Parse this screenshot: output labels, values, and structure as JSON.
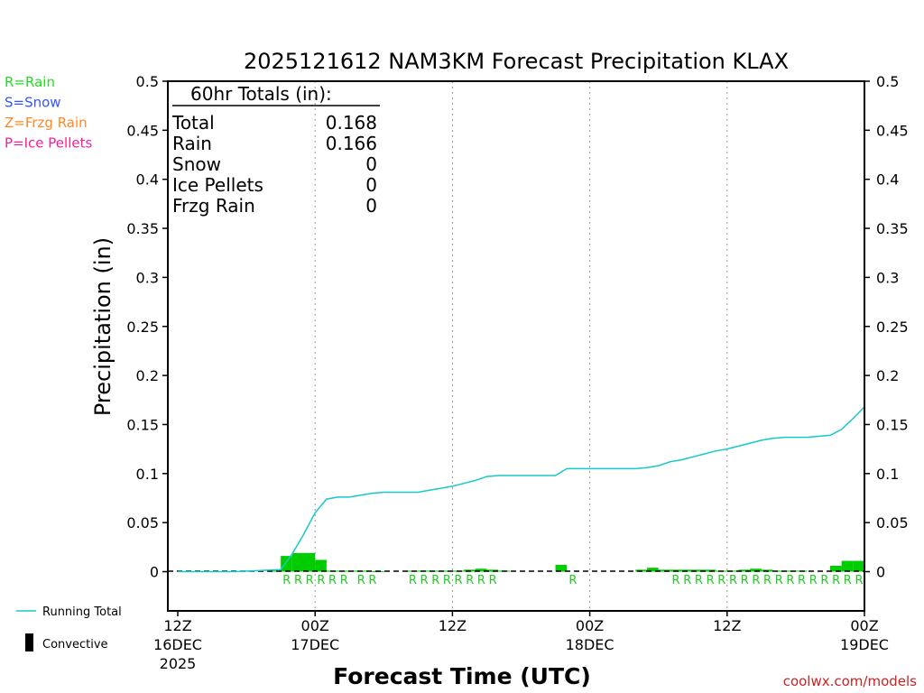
{
  "title": "2025121612 NAM3KM Forecast Precipitation KLAX",
  "credit": "coolwx.com/models",
  "legend_ptype": [
    {
      "label": "R=Rain",
      "color": "#22dd22"
    },
    {
      "label": "S=Snow",
      "color": "#3355ff"
    },
    {
      "label": "Z=Frzg Rain",
      "color": "#ff8822"
    },
    {
      "label": "P=Ice Pellets",
      "color": "#ee2299"
    }
  ],
  "legend_lines": {
    "running_total": "Running Total",
    "convective": "Convective"
  },
  "totals": {
    "heading": "60hr Totals (in):",
    "rows": [
      {
        "label": "Total",
        "value": "0.168"
      },
      {
        "label": "Rain",
        "value": "0.166"
      },
      {
        "label": "Snow",
        "value": "0"
      },
      {
        "label": "Ice Pellets",
        "value": "0"
      },
      {
        "label": "Frzg Rain",
        "value": "0"
      }
    ]
  },
  "colors": {
    "rain": "#00cc00",
    "running_total": "#18c8c8",
    "frame": "#000000",
    "grid": "#999999"
  },
  "chart_data": {
    "type": "bar",
    "title": "2025121612 NAM3KM Forecast Precipitation KLAX",
    "xlabel": "Forecast Time (UTC)",
    "ylabel": "Precipitation (in)",
    "ylim": [
      -0.04,
      0.5
    ],
    "y_ticks": [
      "0",
      "0.05",
      "0.1",
      "0.15",
      "0.2",
      "0.25",
      "0.3",
      "0.35",
      "0.4",
      "0.45",
      "0.5"
    ],
    "x_ticks": [
      {
        "hour": 0,
        "lines": [
          "12Z",
          "16DEC",
          "2025"
        ]
      },
      {
        "hour": 12,
        "lines": [
          "00Z",
          "17DEC"
        ]
      },
      {
        "hour": 24,
        "lines": [
          "12Z"
        ]
      },
      {
        "hour": 36,
        "lines": [
          "00Z",
          "18DEC"
        ]
      },
      {
        "hour": 48,
        "lines": [
          "12Z"
        ]
      },
      {
        "hour": 60,
        "lines": [
          "00Z",
          "19DEC"
        ]
      }
    ],
    "grid": "dotted vertical at 00Z and 12Z",
    "hourly_precip": {
      "hours": [
        9,
        10,
        11,
        12,
        13,
        14,
        15,
        16,
        17,
        18,
        21,
        22,
        23,
        24,
        25,
        26,
        27,
        28,
        29,
        34,
        41,
        42,
        43,
        44,
        45,
        46,
        47,
        48,
        49,
        50,
        51,
        52,
        53,
        54,
        55,
        58,
        59,
        60
      ],
      "values": [
        0.001,
        0.016,
        0.019,
        0.019,
        0.012,
        0.001,
        0.001,
        0.001,
        0.001,
        0.0005,
        0.001,
        0.001,
        0.001,
        0.001,
        0.001,
        0.002,
        0.003,
        0.002,
        0.001,
        0.007,
        0.002,
        0.004,
        0.002,
        0.002,
        0.002,
        0.002,
        0.002,
        0.001,
        0.001,
        0.002,
        0.003,
        0.002,
        0.001,
        0.001,
        0.001,
        0.006,
        0.011,
        0.011
      ]
    },
    "ptype_markers": {
      "label": "R",
      "hours": [
        10,
        11,
        12,
        13,
        14,
        15,
        16.5,
        17.5,
        21,
        22,
        23,
        24,
        25,
        26,
        27,
        28,
        35,
        44,
        45,
        46,
        47,
        48,
        49,
        50,
        51,
        52,
        53,
        54,
        55,
        56,
        57,
        58,
        59,
        60
      ]
    },
    "series": [
      {
        "name": "Running Total",
        "x": [
          0,
          5,
          9,
          10,
          11,
          12,
          13,
          14,
          15,
          16,
          17,
          18,
          21,
          22,
          23,
          24,
          25,
          26,
          27,
          28,
          29,
          30,
          31,
          32,
          33,
          34,
          35,
          36,
          37,
          38,
          39,
          40,
          41,
          42,
          43,
          44,
          45,
          46,
          47,
          48,
          49,
          50,
          51,
          52,
          53,
          54,
          55,
          56,
          57,
          58,
          59,
          60
        ],
        "y": [
          0,
          0,
          0.002,
          0.018,
          0.038,
          0.06,
          0.074,
          0.076,
          0.076,
          0.078,
          0.08,
          0.081,
          0.081,
          0.083,
          0.085,
          0.087,
          0.09,
          0.093,
          0.097,
          0.098,
          0.098,
          0.098,
          0.098,
          0.098,
          0.098,
          0.105,
          0.105,
          0.105,
          0.105,
          0.105,
          0.105,
          0.105,
          0.106,
          0.108,
          0.112,
          0.114,
          0.117,
          0.12,
          0.123,
          0.125,
          0.128,
          0.131,
          0.134,
          0.136,
          0.137,
          0.137,
          0.137,
          0.138,
          0.139,
          0.145,
          0.156,
          0.168
        ]
      }
    ]
  }
}
